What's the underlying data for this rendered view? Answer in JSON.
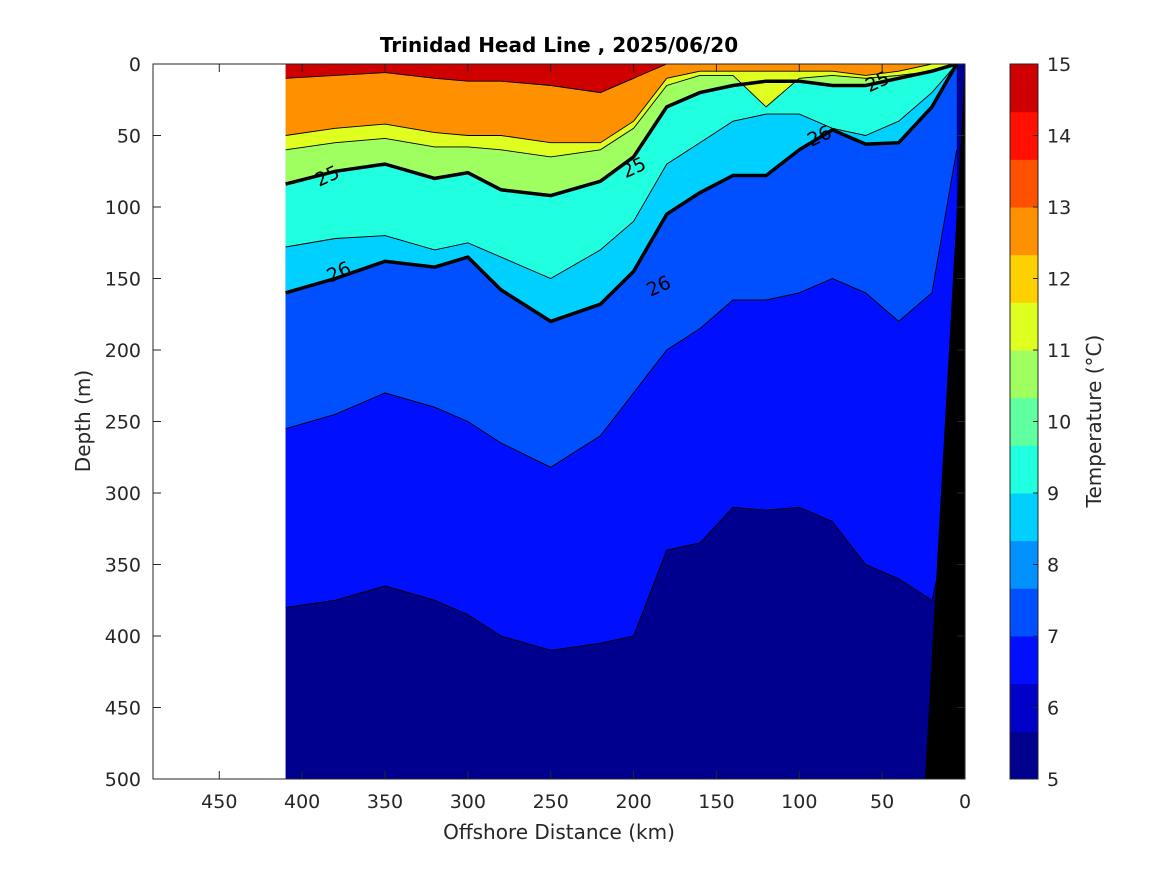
{
  "chart_data": {
    "type": "heatmap",
    "title": "Trinidad Head Line , 2025/06/20",
    "xlabel": "Offshore Distance (km)",
    "ylabel": "Depth (m)",
    "colorbar_label": "Temperature (°C)",
    "x_range": [
      490,
      0
    ],
    "y_range": [
      0,
      500
    ],
    "color_range": [
      5,
      15
    ],
    "x_ticks": [
      "450",
      "400",
      "350",
      "300",
      "250",
      "200",
      "150",
      "100",
      "50",
      "0"
    ],
    "x_tick_values": [
      450,
      400,
      350,
      300,
      250,
      200,
      150,
      100,
      50,
      0
    ],
    "y_ticks": [
      "0",
      "50",
      "100",
      "150",
      "200",
      "250",
      "300",
      "350",
      "400",
      "450",
      "500"
    ],
    "y_tick_values": [
      0,
      50,
      100,
      150,
      200,
      250,
      300,
      350,
      400,
      450,
      500
    ],
    "colorbar_ticks": [
      "5",
      "6",
      "7",
      "8",
      "9",
      "10",
      "11",
      "12",
      "13",
      "14",
      "15"
    ],
    "colorbar_tick_values": [
      5,
      6,
      7,
      8,
      9,
      10,
      11,
      12,
      13,
      14,
      15
    ],
    "colors": [
      "#00008f",
      "#0000c8",
      "#0010ff",
      "#0050ff",
      "#0090ff",
      "#00d0ff",
      "#20ffdf",
      "#60ff9f",
      "#9fff60",
      "#dfff20",
      "#ffd000",
      "#ff9000",
      "#ff5000",
      "#ff1000",
      "#cf0000",
      "#8f0000"
    ],
    "section_x_extent": [
      410,
      0
    ],
    "temperature_profiles": {
      "x": [
        410,
        380,
        350,
        320,
        300,
        280,
        250,
        220,
        200,
        180,
        160,
        140,
        120,
        100,
        80,
        60,
        40,
        20,
        5
      ],
      "isotherm_depths": {
        "14": [
          10,
          8,
          6,
          10,
          12,
          12,
          15,
          20,
          10,
          0,
          0,
          0,
          0,
          0,
          0,
          0,
          0,
          0,
          0
        ],
        "12": [
          50,
          45,
          42,
          48,
          50,
          50,
          55,
          55,
          40,
          10,
          5,
          5,
          5,
          5,
          5,
          8,
          5,
          0,
          0
        ],
        "11": [
          60,
          55,
          52,
          58,
          58,
          60,
          65,
          60,
          45,
          15,
          8,
          8,
          30,
          10,
          8,
          10,
          8,
          5,
          0
        ],
        "10": [
          84,
          75,
          70,
          80,
          76,
          88,
          92,
          82,
          65,
          30,
          20,
          15,
          12,
          12,
          15,
          15,
          10,
          5,
          0
        ],
        "9": [
          128,
          122,
          120,
          130,
          125,
          135,
          150,
          130,
          110,
          70,
          55,
          40,
          35,
          35,
          45,
          50,
          40,
          20,
          0
        ],
        "8": [
          160,
          150,
          138,
          142,
          135,
          158,
          180,
          168,
          145,
          105,
          90,
          78,
          78,
          60,
          46,
          56,
          55,
          30,
          0
        ],
        "7": [
          255,
          245,
          230,
          240,
          250,
          265,
          282,
          260,
          230,
          200,
          185,
          165,
          165,
          160,
          150,
          160,
          180,
          160,
          60
        ],
        "6": [
          380,
          375,
          365,
          375,
          385,
          400,
          410,
          405,
          400,
          340,
          335,
          310,
          312,
          310,
          320,
          350,
          360,
          375,
          300
        ]
      }
    },
    "contour_labels": [
      {
        "text": "25",
        "x": 385,
        "depth": 78
      },
      {
        "text": "25",
        "x": 200,
        "depth": 72
      },
      {
        "text": "25",
        "x": 53,
        "depth": 12
      },
      {
        "text": "26",
        "x": 378,
        "depth": 145
      },
      {
        "text": "26",
        "x": 185,
        "depth": 155
      },
      {
        "text": "26",
        "x": 88,
        "depth": 50
      }
    ],
    "grid": false,
    "legend": "colorbar-right"
  }
}
